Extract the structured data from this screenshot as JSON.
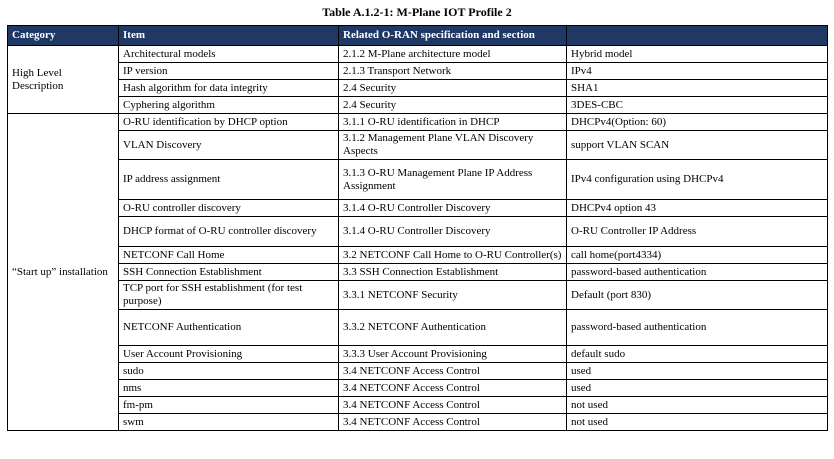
{
  "title": "Table A.1.2-1: M-Plane IOT Profile 2",
  "colors": {
    "header_bg": "#1F3864",
    "header_fg": "#FFFFFF"
  },
  "table": {
    "header": [
      "Category",
      "Item",
      "Related O-RAN specification and section",
      ""
    ],
    "groups": [
      {
        "category": "High Level Description",
        "rows": [
          {
            "item": "Architectural models",
            "spec": "2.1.2 M-Plane architecture model",
            "value": "Hybrid model"
          },
          {
            "item": "IP version",
            "spec": "2.1.3 Transport Network",
            "value": "IPv4"
          },
          {
            "item": "Hash algorithm for data integrity",
            "spec": "2.4 Security",
            "value": "SHA1"
          },
          {
            "item": "Cyphering algorithm",
            "spec": "2.4 Security",
            "value": "3DES-CBC"
          }
        ]
      },
      {
        "category": "“Start up” installation",
        "rows": [
          {
            "item": "O-RU identification by DHCP option",
            "spec": "3.1.1 O-RU identification in DHCP",
            "value": "DHCPv4(Option: 60)"
          },
          {
            "item": "VLAN Discovery",
            "spec": "3.1.2 Management Plane VLAN Discovery Aspects",
            "value": "support VLAN SCAN"
          },
          {
            "item": "IP address assignment",
            "spec": "3.1.3 O-RU Management Plane IP Address Assignment",
            "value": "IPv4 configuration using DHCPv4"
          },
          {
            "item": "O-RU controller discovery",
            "spec": "3.1.4 O-RU Controller Discovery",
            "value": "DHCPv4 option 43"
          },
          {
            "item": "DHCP format of O-RU controller discovery",
            "spec": "3.1.4 O-RU Controller Discovery",
            "value": "O-RU Controller IP Address"
          },
          {
            "item": "NETCONF Call Home",
            "spec": "3.2 NETCONF Call Home to O-RU Controller(s)",
            "value": "call home(port4334)"
          },
          {
            "item": "SSH Connection Establishment",
            "spec": "3.3 SSH Connection Establishment",
            "value": "password-based authentication"
          },
          {
            "item": "TCP port for SSH establishment (for test purpose)",
            "spec": "3.3.1 NETCONF Security",
            "value": "Default (port 830)"
          },
          {
            "item": "NETCONF Authentication",
            "spec": "3.3.2 NETCONF Authentication",
            "value": "password-based authentication"
          },
          {
            "item": "User Account Provisioning",
            "spec": "3.3.3 User Account Provisioning",
            "value": "default sudo"
          },
          {
            "item": "sudo",
            "spec": "3.4 NETCONF Access Control",
            "value": "used"
          },
          {
            "item": "nms",
            "spec": "3.4 NETCONF Access Control",
            "value": "used"
          },
          {
            "item": "fm-pm",
            "spec": "3.4 NETCONF Access Control",
            "value": "not used"
          },
          {
            "item": "swm",
            "spec": "3.4 NETCONF Access Control",
            "value": "not used"
          }
        ]
      }
    ]
  }
}
